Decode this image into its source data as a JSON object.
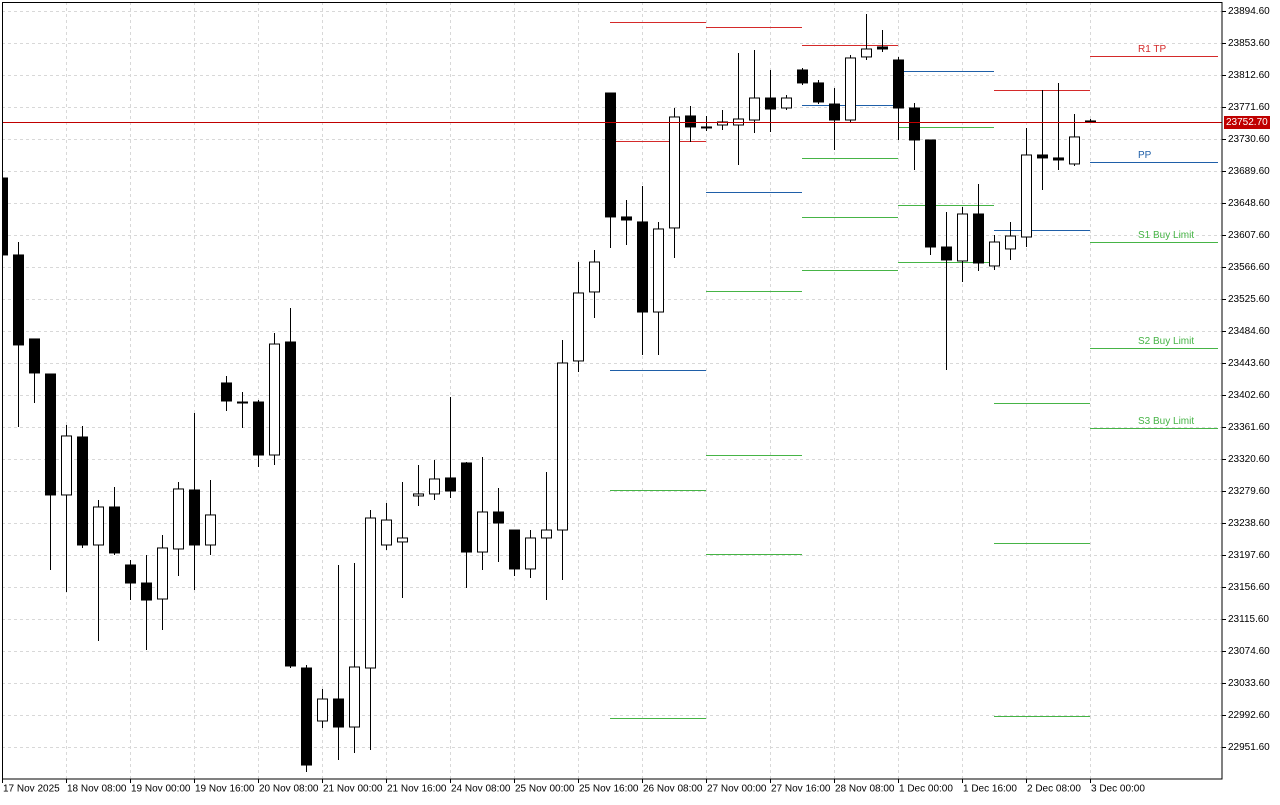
{
  "chart_data": {
    "type": "candlestick",
    "categories": [
      "17 Nov 2025",
      null,
      null,
      null,
      "18 Nov 08:00",
      null,
      null,
      null,
      "19 Nov 00:00",
      null,
      null,
      null,
      "19 Nov 16:00",
      null,
      null,
      null,
      "20 Nov 08:00",
      null,
      null,
      null,
      "21 Nov 00:00",
      null,
      null,
      null,
      "21 Nov 16:00",
      null,
      null,
      null,
      "24 Nov 08:00",
      null,
      null,
      null,
      "25 Nov 00:00",
      null,
      null,
      null,
      "25 Nov 16:00",
      null,
      null,
      null,
      "26 Nov 08:00",
      null,
      null,
      null,
      "27 Nov 00:00",
      null,
      null,
      null,
      "27 Nov 16:00",
      null,
      null,
      null,
      "28 Nov 08:00",
      null,
      null,
      null,
      "1 Dec 00:00",
      null,
      null,
      null,
      "1 Dec 16:00",
      null,
      null,
      null,
      "2 Dec 08:00",
      null,
      null,
      null,
      "3 Dec 00:00"
    ],
    "open": [
      23680.6,
      23582.0,
      23474.4,
      23429.5,
      23274.5,
      23348.8,
      23210.4,
      23259.1,
      23184.8,
      23161.7,
      23141.2,
      23205.3,
      23280.9,
      23210.4,
      23418.0,
      23393.6,
      23393.6,
      23325.7,
      23470.5,
      23052.8,
      22984.9,
      23013.1,
      22977.2,
      23052.8,
      23210.4,
      23214.3,
      23273.2,
      23275.8,
      23296.3,
      23315.5,
      23201.4,
      23252.7,
      23229.6,
      23179.7,
      23219.4,
      23229.6,
      23446.2,
      23534.6,
      23789.5,
      23630.7,
      23624.3,
      23508.9,
      23616.6,
      23760.1,
      23746.0,
      23748.5,
      23748.5,
      23754.9,
      23783.1,
      23770.3,
      23819.0,
      23802.4,
      23775.4,
      23754.9,
      23835.7,
      23848.5,
      23831.8,
      23770.3,
      23729.3,
      23592.2,
      23574.3,
      23634.5,
      23567.9,
      23589.7,
      23605.0,
      23710.1,
      23706.3,
      23698.6,
      23753.7
    ],
    "high": [
      23684.5,
      23598.6,
      23474.4,
      23429.5,
      23364.2,
      23362.9,
      23268.1,
      23284.7,
      23191.2,
      23197.6,
      23223.2,
      23291.1,
      23379.5,
      23293.7,
      23426.9,
      23406.4,
      23396.2,
      23482.0,
      23514.1,
      23056.7,
      23025.9,
      23184.8,
      23187.4,
      23255.3,
      23264.2,
      23291.1,
      23312.9,
      23319.3,
      23400.0,
      23316.8,
      23323.2,
      23283.4,
      23229.6,
      23229.6,
      23303.9,
      23473.1,
      23573.0,
      23588.4,
      23789.5,
      23652.4,
      23670.4,
      23624.3,
      23770.3,
      23772.9,
      23760.1,
      23767.8,
      23840.8,
      23844.6,
      23819.0,
      23787.0,
      23821.6,
      23806.2,
      23795.9,
      23838.2,
      23890.8,
      23870.3,
      23835.7,
      23776.7,
      23729.3,
      23637.1,
      23643.5,
      23672.9,
      23607.6,
      23624.3,
      23744.7,
      23793.4,
      23802.4,
      23762.6,
      23756.2
    ],
    "low": [
      23578.1,
      23361.6,
      23392.3,
      23178.4,
      23150.2,
      23206.6,
      23087.4,
      23197.6,
      23139.9,
      23075.9,
      23101.5,
      23170.7,
      23152.8,
      23197.6,
      23382.1,
      23360.3,
      23310.4,
      23312.9,
      23052.8,
      22919.6,
      22975.9,
      22934.9,
      22943.9,
      22947.8,
      23204.0,
      23142.5,
      23260.4,
      23268.1,
      23270.6,
      23155.3,
      23178.4,
      23188.6,
      23170.7,
      23168.1,
      23139.9,
      23165.6,
      23432.1,
      23501.3,
      23590.9,
      23594.8,
      23453.9,
      23453.9,
      23578.1,
      23726.8,
      23740.9,
      23742.1,
      23697.3,
      23738.3,
      23739.6,
      23767.8,
      23799.8,
      23775.4,
      23716.5,
      23752.4,
      23831.8,
      23842.1,
      23729.3,
      23690.9,
      23582.0,
      23434.6,
      23547.4,
      23561.5,
      23562.8,
      23575.6,
      23592.2,
      23665.3,
      23690.9,
      23696.0,
      23751.1
    ],
    "close": [
      23582.0,
      23466.7,
      23430.8,
      23274.5,
      23350.1,
      23210.4,
      23259.1,
      23200.2,
      23161.7,
      23139.9,
      23206.6,
      23282.2,
      23210.4,
      23248.9,
      23394.9,
      23393.6,
      23325.7,
      23467.9,
      23055.4,
      22928.5,
      23013.1,
      22977.2,
      23054.1,
      23245.0,
      23242.4,
      23219.4,
      23275.8,
      23295.0,
      23279.6,
      23201.4,
      23252.7,
      23238.6,
      23179.7,
      23219.4,
      23229.6,
      23443.6,
      23533.3,
      23573.0,
      23630.7,
      23626.8,
      23508.9,
      23615.3,
      23758.8,
      23746.0,
      23744.7,
      23752.4,
      23756.2,
      23783.1,
      23769.0,
      23783.1,
      23802.4,
      23778.0,
      23754.9,
      23834.4,
      23845.9,
      23845.9,
      23770.3,
      23729.3,
      23592.2,
      23575.6,
      23634.5,
      23571.7,
      23598.6,
      23606.3,
      23710.1,
      23706.3,
      23703.7,
      23733.2,
      23752.7
    ],
    "up_color": "#ffffff",
    "down_color": "#000000",
    "ylim": [
      22910.6,
      23906.1
    ],
    "yticks": [
      {
        "value": 23894.6,
        "label": "23894.60"
      },
      {
        "value": 23853.6,
        "label": "23853.60"
      },
      {
        "value": 23812.6,
        "label": "23812.60"
      },
      {
        "value": 23771.6,
        "label": "23771.60"
      },
      {
        "value": 23730.6,
        "label": "23730.60"
      },
      {
        "value": 23689.6,
        "label": "23689.60"
      },
      {
        "value": 23648.6,
        "label": "23648.60"
      },
      {
        "value": 23607.6,
        "label": "23607.60"
      },
      {
        "value": 23566.6,
        "label": "23566.60"
      },
      {
        "value": 23525.6,
        "label": "23525.60"
      },
      {
        "value": 23484.6,
        "label": "23484.60"
      },
      {
        "value": 23443.6,
        "label": "23443.60"
      },
      {
        "value": 23402.6,
        "label": "23402.60"
      },
      {
        "value": 23361.6,
        "label": "23361.60"
      },
      {
        "value": 23320.6,
        "label": "23320.60"
      },
      {
        "value": 23279.6,
        "label": "23279.60"
      },
      {
        "value": 23238.6,
        "label": "23238.60"
      },
      {
        "value": 23197.6,
        "label": "23197.60"
      },
      {
        "value": 23156.6,
        "label": "23156.60"
      },
      {
        "value": 23115.6,
        "label": "23115.60"
      },
      {
        "value": 23074.6,
        "label": "23074.60"
      },
      {
        "value": 23033.6,
        "label": "23033.60"
      },
      {
        "value": 22992.6,
        "label": "22992.60"
      },
      {
        "value": 22951.6,
        "label": "22951.60"
      }
    ],
    "grid": true,
    "price_line": {
      "value": 23752.7,
      "label": "23752.70",
      "color": "#c00000"
    },
    "levels": [
      {
        "color": "#d42a2a",
        "x": [
          38,
          44
        ],
        "value": 23880.5
      },
      {
        "color": "#d42a2a",
        "x": [
          38,
          44
        ],
        "value": 23728.0
      },
      {
        "color": "#1f5fa8",
        "x": [
          38,
          44
        ],
        "value": 23434.6
      },
      {
        "color": "#46b446",
        "x": [
          38,
          44
        ],
        "value": 23280.9
      },
      {
        "color": "#46b446",
        "x": [
          38,
          44
        ],
        "value": 22988.7
      },
      {
        "color": "#d42a2a",
        "x": [
          44,
          50
        ],
        "value": 23874.1
      },
      {
        "color": "#1f5fa8",
        "x": [
          44,
          50
        ],
        "value": 23662.7
      },
      {
        "color": "#46b446",
        "x": [
          44,
          50
        ],
        "value": 23535.9
      },
      {
        "color": "#46b446",
        "x": [
          44,
          50
        ],
        "value": 23325.7
      },
      {
        "color": "#46b446",
        "x": [
          44,
          50
        ],
        "value": 23198.9
      },
      {
        "color": "#d42a2a",
        "x": [
          50,
          56
        ],
        "value": 23851.0
      },
      {
        "color": "#1f5fa8",
        "x": [
          50,
          56
        ],
        "value": 23774.2
      },
      {
        "color": "#46b446",
        "x": [
          50,
          56
        ],
        "value": 23706.3
      },
      {
        "color": "#46b446",
        "x": [
          50,
          56
        ],
        "value": 23630.7
      },
      {
        "color": "#46b446",
        "x": [
          50,
          56
        ],
        "value": 23562.8
      },
      {
        "color": "#1f5fa8",
        "x": [
          56,
          62
        ],
        "value": 23817.7
      },
      {
        "color": "#46b446",
        "x": [
          56,
          62
        ],
        "value": 23746.0
      },
      {
        "color": "#46b446",
        "x": [
          56,
          62
        ],
        "value": 23646.0
      },
      {
        "color": "#46b446",
        "x": [
          56,
          62
        ],
        "value": 23573.0
      },
      {
        "color": "#d42a2a",
        "x": [
          62,
          68
        ],
        "value": 23793.4
      },
      {
        "color": "#1f5fa8",
        "x": [
          62,
          68
        ],
        "value": 23614.0
      },
      {
        "color": "#46b446",
        "x": [
          62,
          68
        ],
        "value": 23392.3
      },
      {
        "color": "#46b446",
        "x": [
          62,
          68
        ],
        "value": 23213.0
      },
      {
        "color": "#46b446",
        "x": [
          62,
          68
        ],
        "value": 22991.3
      },
      {
        "color": "#d42a2a",
        "x": [
          68,
          76
        ],
        "value": 23836.9,
        "label": "R1 TP"
      },
      {
        "color": "#1f5fa8",
        "x": [
          68,
          76
        ],
        "value": 23701.1,
        "label": "PP"
      },
      {
        "color": "#46b446",
        "x": [
          68,
          76
        ],
        "value": 23598.6,
        "label": "S1 Buy Limit"
      },
      {
        "color": "#46b446",
        "x": [
          68,
          76
        ],
        "value": 23462.8,
        "label": "S2 Buy Limit"
      },
      {
        "color": "#46b446",
        "x": [
          68,
          76
        ],
        "value": 23360.3,
        "label": "S3 Buy Limit"
      }
    ]
  }
}
